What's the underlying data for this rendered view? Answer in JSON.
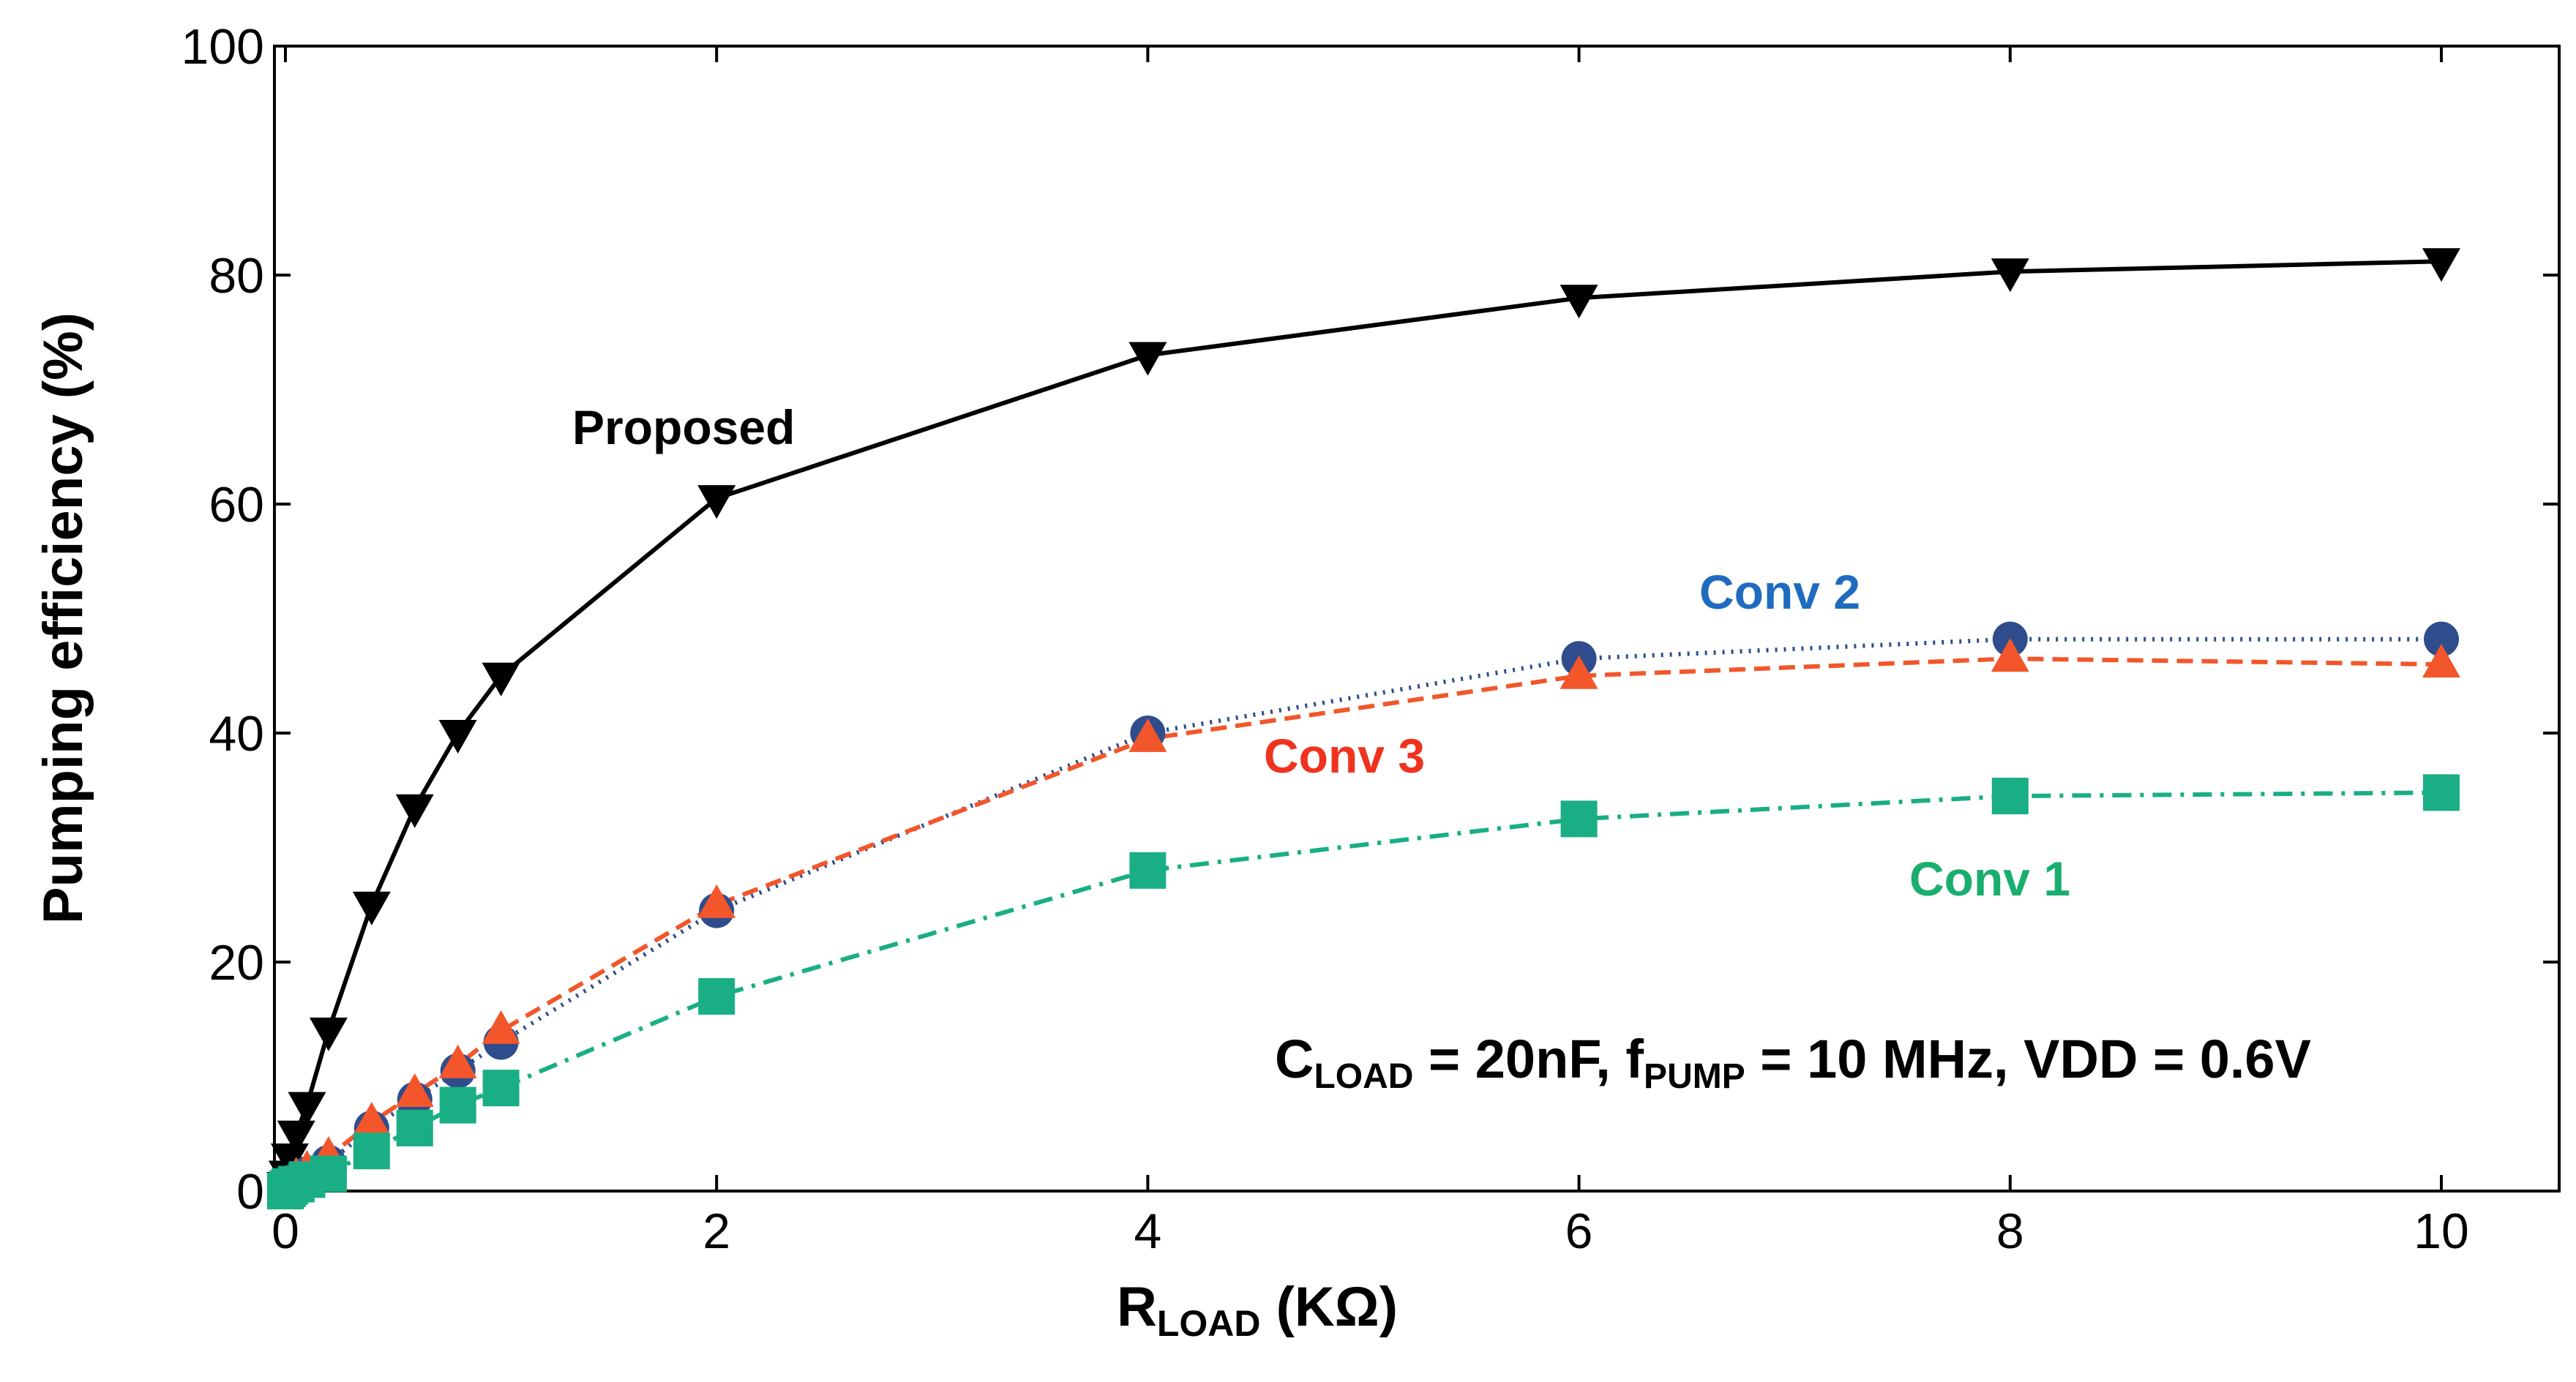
{
  "chart_data": {
    "type": "line",
    "title": "",
    "xlabel": {
      "main": "R",
      "sub": "LOAD",
      "rest": " (KΩ)"
    },
    "ylabel": "Pumping efficiency (%)",
    "xlim": [
      -0.1,
      10.5
    ],
    "ylim": [
      0,
      100
    ],
    "x_ticks": [
      0,
      2,
      4,
      6,
      8,
      10
    ],
    "x_tick_labels": [
      "0",
      "2",
      "4",
      "6",
      "8",
      "10"
    ],
    "y_ticks": [
      0,
      20,
      40,
      60,
      80,
      100
    ],
    "y_tick_labels": [
      "0",
      "20",
      "40",
      "60",
      "80",
      "100"
    ],
    "grid": false,
    "legend": "inline labels",
    "series": [
      {
        "name": "Proposed",
        "color": "#000000",
        "marker": "triangle-down",
        "line_style": "solid",
        "x": [
          0,
          0.01,
          0.02,
          0.05,
          0.1,
          0.2,
          0.4,
          0.6,
          0.8,
          1,
          2,
          4,
          6,
          8,
          10
        ],
        "y": [
          0.5,
          1.5,
          3,
          5,
          7.5,
          14,
          25,
          33.5,
          40,
          45,
          60.5,
          73,
          78,
          80.3,
          81.2
        ]
      },
      {
        "name": "Conv 2",
        "color": "#2F4D8C",
        "marker": "circle",
        "line_style": "dotted",
        "x": [
          0,
          0.01,
          0.02,
          0.05,
          0.1,
          0.2,
          0.4,
          0.6,
          0.8,
          1,
          2,
          4,
          6,
          8,
          10
        ],
        "y": [
          0,
          0.3,
          0.6,
          1,
          1.5,
          2.5,
          5.5,
          8,
          10.5,
          13,
          24.5,
          40,
          46.5,
          48.2,
          48.2
        ]
      },
      {
        "name": "Conv 3",
        "color": "#F2562A",
        "marker": "triangle-up",
        "line_style": "dashed",
        "x": [
          0,
          0.01,
          0.02,
          0.05,
          0.1,
          0.2,
          0.4,
          0.6,
          0.8,
          1,
          2,
          4,
          6,
          8,
          10
        ],
        "y": [
          0,
          0.3,
          0.6,
          1.2,
          1.8,
          3,
          6,
          8.5,
          11,
          14,
          25,
          39.5,
          45,
          46.5,
          46
        ]
      },
      {
        "name": "Conv 1",
        "color": "#1AAE84",
        "marker": "square",
        "line_style": "dashdot",
        "x": [
          0,
          0.01,
          0.02,
          0.05,
          0.1,
          0.2,
          0.4,
          0.6,
          0.8,
          1,
          2,
          4,
          6,
          8,
          10
        ],
        "y": [
          0,
          0.2,
          0.4,
          0.6,
          1,
          1.5,
          3.5,
          5.5,
          7.5,
          9,
          17,
          28,
          32.5,
          34.5,
          34.8
        ]
      }
    ],
    "series_labels": [
      {
        "text": "Proposed",
        "color": "#000000"
      },
      {
        "text": "Conv 2",
        "color": "#1F6BC0"
      },
      {
        "text": "Conv 3",
        "color": "#F0331E"
      },
      {
        "text": "Conv 1",
        "color": "#1AAE6E"
      }
    ],
    "annotation": {
      "parts": [
        {
          "text": "C",
          "sub": false
        },
        {
          "text": "LOAD",
          "sub": true
        },
        {
          "text": " = 20nF, f",
          "sub": false
        },
        {
          "text": "PUMP",
          "sub": true
        },
        {
          "text": " = 10 MHz, VDD = 0.6V",
          "sub": false
        }
      ]
    }
  }
}
